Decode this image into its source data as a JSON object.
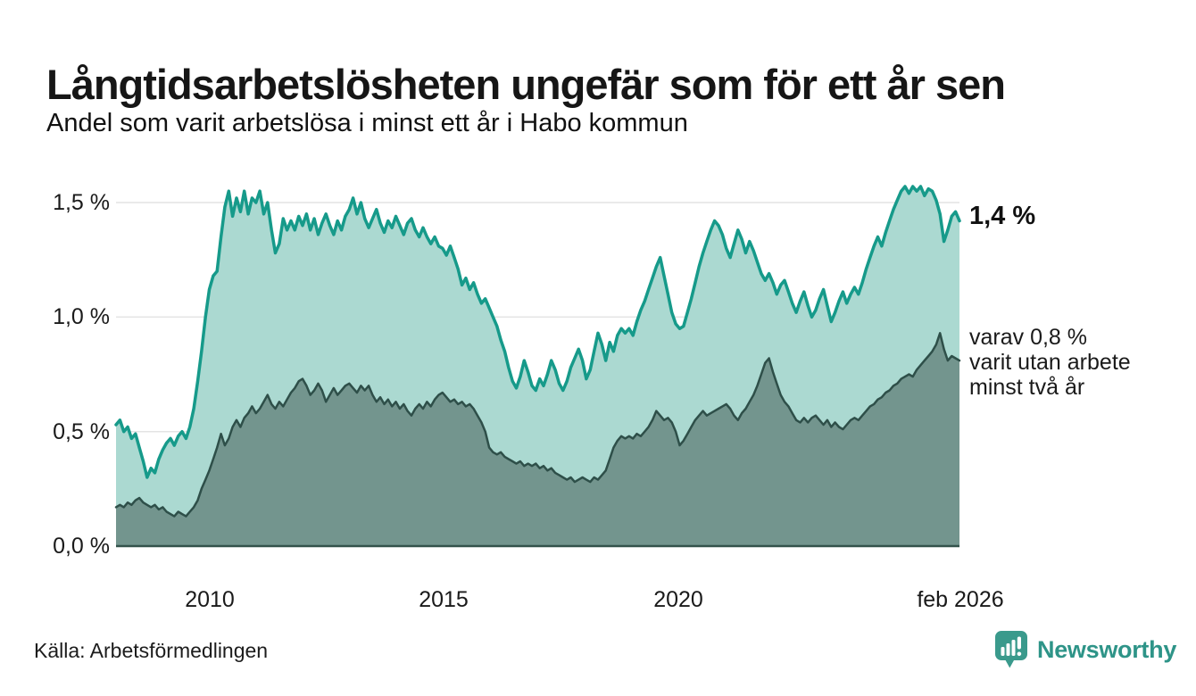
{
  "header": {
    "title": "Långtidsarbetslösheten ungefär som för ett år sen",
    "subtitle": "Andel som varit arbetslösa i minst ett år i Habo kommun"
  },
  "chart_data": {
    "type": "area",
    "title": "Andel som varit arbetslösa i minst ett år i Habo kommun",
    "x_range": {
      "start": "2008-01",
      "end": "2026-02",
      "frequency": "monthly"
    },
    "x_ticks": [
      {
        "label": "2010"
      },
      {
        "label": "2015"
      },
      {
        "label": "2020"
      },
      {
        "label": "feb 2026"
      }
    ],
    "y_ticks": [
      {
        "value": 0.0,
        "label": "0,0 %"
      },
      {
        "value": 0.5,
        "label": "0,5 %"
      },
      {
        "value": 1.0,
        "label": "1,0 %"
      },
      {
        "value": 1.5,
        "label": "1,5 %"
      }
    ],
    "ylim": [
      0,
      1.65
    ],
    "grid_color": "#e4e4e4",
    "baseline_color": "#33524b",
    "series": [
      {
        "name": "Arbetslösa minst ett år",
        "color": "#169a8a",
        "fill": "#abd9d1",
        "end_value_label": "1,4 %",
        "values": [
          0.53,
          0.55,
          0.5,
          0.52,
          0.47,
          0.49,
          0.43,
          0.37,
          0.3,
          0.34,
          0.32,
          0.38,
          0.42,
          0.45,
          0.47,
          0.44,
          0.48,
          0.5,
          0.47,
          0.52,
          0.6,
          0.72,
          0.85,
          1.0,
          1.12,
          1.18,
          1.2,
          1.35,
          1.48,
          1.55,
          1.44,
          1.52,
          1.46,
          1.55,
          1.45,
          1.52,
          1.5,
          1.55,
          1.45,
          1.5,
          1.38,
          1.28,
          1.32,
          1.43,
          1.38,
          1.42,
          1.38,
          1.44,
          1.4,
          1.45,
          1.38,
          1.43,
          1.36,
          1.41,
          1.45,
          1.4,
          1.36,
          1.42,
          1.38,
          1.44,
          1.47,
          1.52,
          1.45,
          1.5,
          1.43,
          1.39,
          1.43,
          1.47,
          1.41,
          1.37,
          1.42,
          1.39,
          1.44,
          1.4,
          1.36,
          1.41,
          1.43,
          1.38,
          1.35,
          1.39,
          1.35,
          1.32,
          1.35,
          1.31,
          1.3,
          1.27,
          1.31,
          1.26,
          1.21,
          1.14,
          1.17,
          1.12,
          1.15,
          1.1,
          1.06,
          1.08,
          1.04,
          1.0,
          0.96,
          0.9,
          0.85,
          0.78,
          0.72,
          0.69,
          0.74,
          0.81,
          0.76,
          0.7,
          0.68,
          0.73,
          0.7,
          0.75,
          0.81,
          0.77,
          0.71,
          0.68,
          0.72,
          0.78,
          0.82,
          0.86,
          0.81,
          0.73,
          0.77,
          0.85,
          0.93,
          0.88,
          0.81,
          0.89,
          0.85,
          0.92,
          0.95,
          0.93,
          0.95,
          0.92,
          0.98,
          1.03,
          1.07,
          1.12,
          1.17,
          1.22,
          1.26,
          1.18,
          1.1,
          1.02,
          0.97,
          0.95,
          0.96,
          1.02,
          1.08,
          1.15,
          1.22,
          1.28,
          1.33,
          1.38,
          1.42,
          1.4,
          1.36,
          1.3,
          1.26,
          1.32,
          1.38,
          1.34,
          1.28,
          1.33,
          1.29,
          1.24,
          1.19,
          1.16,
          1.19,
          1.15,
          1.1,
          1.14,
          1.16,
          1.11,
          1.06,
          1.02,
          1.07,
          1.11,
          1.05,
          1.0,
          1.03,
          1.08,
          1.12,
          1.05,
          0.98,
          1.02,
          1.07,
          1.11,
          1.06,
          1.1,
          1.13,
          1.1,
          1.15,
          1.21,
          1.26,
          1.31,
          1.35,
          1.31,
          1.37,
          1.42,
          1.47,
          1.51,
          1.55,
          1.57,
          1.54,
          1.57,
          1.55,
          1.57,
          1.53,
          1.56,
          1.55,
          1.51,
          1.45,
          1.33,
          1.38,
          1.44,
          1.46,
          1.42
        ]
      },
      {
        "name": "Varav utan arbete minst två år",
        "color": "#2e4f49",
        "fill": "#73958e",
        "end_value_label": "0,8 %",
        "values": [
          0.17,
          0.18,
          0.17,
          0.19,
          0.18,
          0.2,
          0.21,
          0.19,
          0.18,
          0.17,
          0.18,
          0.16,
          0.17,
          0.15,
          0.14,
          0.13,
          0.15,
          0.14,
          0.13,
          0.15,
          0.17,
          0.2,
          0.25,
          0.29,
          0.33,
          0.38,
          0.43,
          0.49,
          0.44,
          0.47,
          0.52,
          0.55,
          0.52,
          0.56,
          0.58,
          0.61,
          0.58,
          0.6,
          0.63,
          0.66,
          0.62,
          0.6,
          0.63,
          0.61,
          0.64,
          0.67,
          0.69,
          0.72,
          0.73,
          0.7,
          0.66,
          0.68,
          0.71,
          0.68,
          0.63,
          0.66,
          0.69,
          0.66,
          0.68,
          0.7,
          0.71,
          0.69,
          0.67,
          0.7,
          0.68,
          0.7,
          0.66,
          0.63,
          0.65,
          0.62,
          0.64,
          0.61,
          0.63,
          0.6,
          0.62,
          0.59,
          0.57,
          0.6,
          0.62,
          0.6,
          0.63,
          0.61,
          0.64,
          0.66,
          0.67,
          0.65,
          0.63,
          0.64,
          0.62,
          0.63,
          0.61,
          0.62,
          0.6,
          0.57,
          0.54,
          0.5,
          0.43,
          0.41,
          0.4,
          0.41,
          0.39,
          0.38,
          0.37,
          0.36,
          0.37,
          0.35,
          0.36,
          0.35,
          0.36,
          0.34,
          0.35,
          0.33,
          0.34,
          0.32,
          0.31,
          0.3,
          0.29,
          0.3,
          0.28,
          0.29,
          0.3,
          0.29,
          0.28,
          0.3,
          0.29,
          0.31,
          0.33,
          0.38,
          0.43,
          0.46,
          0.48,
          0.47,
          0.48,
          0.47,
          0.49,
          0.48,
          0.5,
          0.52,
          0.55,
          0.59,
          0.57,
          0.55,
          0.56,
          0.54,
          0.5,
          0.44,
          0.46,
          0.49,
          0.52,
          0.55,
          0.57,
          0.59,
          0.57,
          0.58,
          0.59,
          0.6,
          0.61,
          0.62,
          0.6,
          0.57,
          0.55,
          0.58,
          0.6,
          0.63,
          0.66,
          0.7,
          0.75,
          0.8,
          0.82,
          0.76,
          0.71,
          0.66,
          0.63,
          0.61,
          0.58,
          0.55,
          0.54,
          0.56,
          0.54,
          0.56,
          0.57,
          0.55,
          0.53,
          0.55,
          0.52,
          0.54,
          0.52,
          0.51,
          0.53,
          0.55,
          0.56,
          0.55,
          0.57,
          0.59,
          0.61,
          0.62,
          0.64,
          0.65,
          0.67,
          0.68,
          0.7,
          0.71,
          0.73,
          0.74,
          0.75,
          0.74,
          0.77,
          0.79,
          0.81,
          0.83,
          0.85,
          0.88,
          0.93,
          0.86,
          0.81,
          0.83,
          0.82,
          0.81
        ]
      }
    ],
    "end_labels": [
      {
        "series": "Arbetslösa minst ett år",
        "text": "1,4 %"
      },
      {
        "series": "Varav utan arbete minst två år",
        "lines": [
          "varav 0,8 %",
          "varit utan arbete",
          "minst två år"
        ]
      }
    ],
    "legend_position": "none",
    "grid": "horizontal-only"
  },
  "footer": {
    "source": "Källa: Arbetsförmedlingen",
    "brand": "Newsworthy",
    "brand_color": "#2e9488",
    "brand_icon": "speech-bubble-bar-chart"
  }
}
